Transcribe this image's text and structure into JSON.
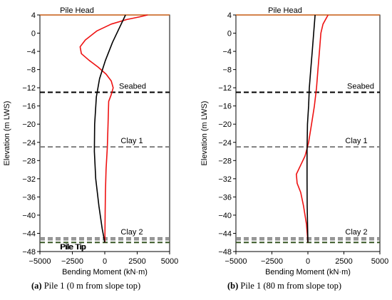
{
  "figure": {
    "captions": [
      {
        "label": "(a)",
        "text": "Pile 1 (0 m from slope top)"
      },
      {
        "label": "(b)",
        "text": "Pile 1 (80 m from slope top)"
      }
    ]
  },
  "colors": {
    "red_series": "#ee1111",
    "black_series": "#000000",
    "pile_head": "#c55a11",
    "seabed": "#000000",
    "clay": "#808080",
    "pile_tip": "#375623"
  },
  "chart_data": [
    {
      "type": "line",
      "xlabel": "Bending Moment (kN·m)",
      "ylabel": "Elevation (m LWS)",
      "xlim": [
        -5000,
        5000
      ],
      "ylim": [
        -48,
        4
      ],
      "xticks": [
        -5000,
        -2500,
        0,
        2500,
        5000
      ],
      "yticks": [
        4,
        0,
        -4,
        -8,
        -12,
        -16,
        -20,
        -24,
        -28,
        -32,
        -36,
        -40,
        -44,
        -48
      ],
      "grid": false,
      "reference_lines": [
        {
          "label": "Pile Head",
          "y": 4,
          "style": "solid",
          "color": "#c55a11"
        },
        {
          "label": "Seabed",
          "y": -13,
          "style": "dashed",
          "color": "#000000"
        },
        {
          "label": "Clay 1",
          "y": -25,
          "style": "dashed",
          "color": "#808080"
        },
        {
          "label": "Clay 2",
          "y": -45,
          "style": "dashed",
          "color": "#808080"
        },
        {
          "label": "",
          "y": -45.4,
          "style": "dashed",
          "color": "#808080"
        },
        {
          "label": "Pile Tip",
          "y": -46,
          "style": "dashed",
          "color": "#375623"
        }
      ],
      "series": [
        {
          "color": "#ee1111",
          "points": [
            [
              3300,
              4
            ],
            [
              2700,
              3.6
            ],
            [
              1700,
              3
            ],
            [
              500,
              2
            ],
            [
              -600,
              0.5
            ],
            [
              -1500,
              -1.5
            ],
            [
              -1900,
              -3
            ],
            [
              -1800,
              -4.5
            ],
            [
              -1200,
              -6
            ],
            [
              -500,
              -7.5
            ],
            [
              100,
              -9
            ],
            [
              500,
              -10.5
            ],
            [
              650,
              -12
            ],
            [
              500,
              -13.5
            ],
            [
              300,
              -15
            ],
            [
              250,
              -20
            ],
            [
              200,
              -25
            ],
            [
              100,
              -30
            ],
            [
              50,
              -35
            ],
            [
              30,
              -40
            ],
            [
              10,
              -45
            ],
            [
              0,
              -46
            ]
          ]
        },
        {
          "color": "#000000",
          "points": [
            [
              1600,
              4
            ],
            [
              1100,
              1
            ],
            [
              600,
              -2
            ],
            [
              50,
              -6
            ],
            [
              -400,
              -10
            ],
            [
              -650,
              -14
            ],
            [
              -780,
              -20
            ],
            [
              -800,
              -26
            ],
            [
              -700,
              -32
            ],
            [
              -450,
              -38
            ],
            [
              -200,
              -43
            ],
            [
              0,
              -46
            ]
          ]
        }
      ]
    },
    {
      "type": "line",
      "xlabel": "Bending Moment (kN·m)",
      "ylabel": "Elevation (m LWS)",
      "xlim": [
        -5000,
        5000
      ],
      "ylim": [
        -48,
        4
      ],
      "xticks": [
        -5000,
        -2500,
        0,
        2500,
        5000
      ],
      "yticks": [
        4,
        0,
        -4,
        -8,
        -12,
        -16,
        -20,
        -24,
        -28,
        -32,
        -36,
        -40,
        -44,
        -48
      ],
      "grid": false,
      "reference_lines": [
        {
          "label": "Pile Head",
          "y": 4,
          "style": "solid",
          "color": "#c55a11"
        },
        {
          "label": "Seabed",
          "y": -13,
          "style": "dashed",
          "color": "#000000"
        },
        {
          "label": "Clay 1",
          "y": -25,
          "style": "dashed",
          "color": "#808080"
        },
        {
          "label": "Clay 2",
          "y": -45,
          "style": "dashed",
          "color": "#808080"
        },
        {
          "label": "",
          "y": -45.4,
          "style": "dashed",
          "color": "#808080"
        },
        {
          "label": "Pile Tip",
          "y": -46,
          "style": "dashed",
          "color": "#375623"
        }
      ],
      "series": [
        {
          "color": "#ee1111",
          "points": [
            [
              1400,
              4
            ],
            [
              1050,
              2
            ],
            [
              900,
              0
            ],
            [
              800,
              -4
            ],
            [
              700,
              -8
            ],
            [
              600,
              -12
            ],
            [
              450,
              -16
            ],
            [
              250,
              -20
            ],
            [
              50,
              -24
            ],
            [
              -200,
              -27
            ],
            [
              -500,
              -29
            ],
            [
              -800,
              -31
            ],
            [
              -750,
              -33
            ],
            [
              -500,
              -35
            ],
            [
              -300,
              -38
            ],
            [
              -100,
              -42
            ],
            [
              0,
              -46
            ]
          ]
        },
        {
          "color": "#000000",
          "points": [
            [
              500,
              4
            ],
            [
              400,
              0
            ],
            [
              300,
              -4
            ],
            [
              200,
              -8
            ],
            [
              100,
              -12
            ],
            [
              50,
              -16
            ],
            [
              -30,
              -20
            ],
            [
              -60,
              -26
            ],
            [
              -60,
              -32
            ],
            [
              -50,
              -38
            ],
            [
              -20,
              -43
            ],
            [
              0,
              -46
            ]
          ]
        }
      ]
    }
  ]
}
